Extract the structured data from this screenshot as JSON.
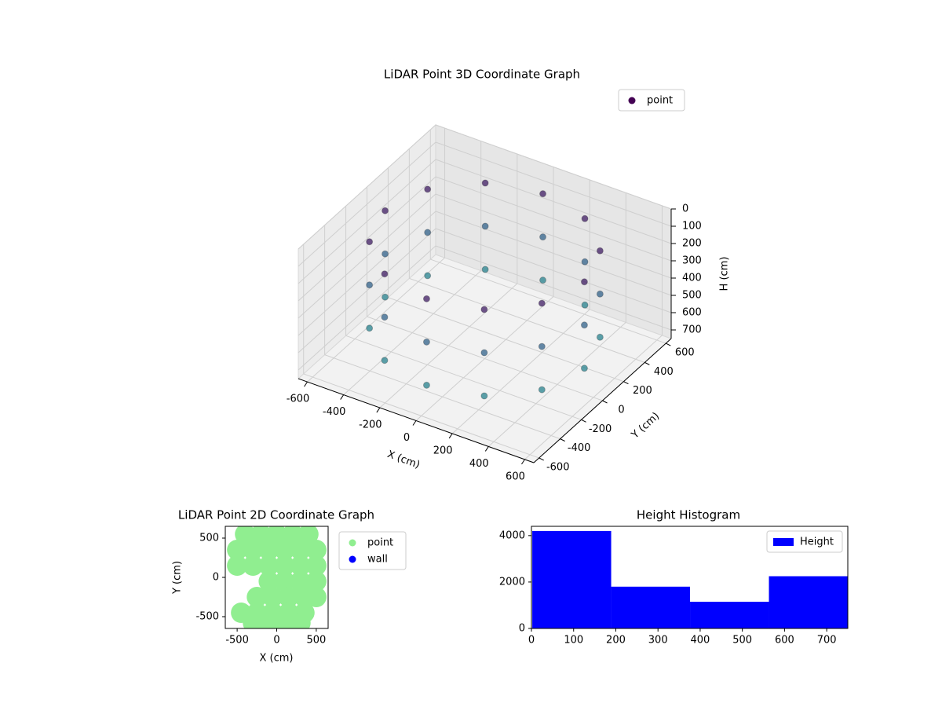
{
  "chart_data": [
    {
      "type": "scatter3d",
      "title": "LiDAR Point 3D Coordinate Graph",
      "xlabel": "X (cm)",
      "ylabel": "Y (cm)",
      "zlabel": "H (cm)",
      "xlim": [
        -650,
        650
      ],
      "ylim": [
        -650,
        650
      ],
      "zlim": [
        0,
        750
      ],
      "z_inverted": true,
      "xticks": [
        -600,
        -400,
        -200,
        0,
        200,
        400,
        600
      ],
      "yticks": [
        -600,
        -400,
        -200,
        0,
        200,
        400,
        600
      ],
      "zticks": [
        0,
        100,
        200,
        300,
        400,
        500,
        600,
        700
      ],
      "colormap": [
        "#440154",
        "#31688e",
        "#21918c"
      ],
      "legend": "upper right",
      "series": [
        {
          "name": "point",
          "color": "#440154",
          "x": [
            550,
            476,
            275,
            0,
            -275,
            -476,
            -550,
            -476,
            -275,
            0,
            275,
            476,
            550,
            476,
            275,
            0,
            -275,
            -476,
            -550,
            -476,
            -275,
            0,
            275,
            476,
            550,
            476,
            275,
            0,
            -275,
            -476,
            -550,
            -476,
            -275,
            0,
            275,
            476
          ],
          "y": [
            0,
            275,
            476,
            550,
            476,
            275,
            0,
            -275,
            -476,
            -550,
            -476,
            -275,
            0,
            275,
            476,
            550,
            476,
            275,
            0,
            -275,
            -476,
            -550,
            -476,
            -275,
            0,
            275,
            476,
            550,
            476,
            275,
            0,
            -275,
            -476,
            -550,
            -476,
            -275
          ],
          "h": [
            100,
            100,
            100,
            100,
            100,
            100,
            100,
            100,
            100,
            100,
            100,
            100,
            350,
            350,
            350,
            350,
            350,
            350,
            350,
            350,
            350,
            350,
            350,
            350,
            600,
            600,
            600,
            600,
            600,
            600,
            600,
            600,
            600,
            600,
            600,
            600
          ]
        }
      ]
    },
    {
      "type": "scatter",
      "title": "LiDAR Point 2D Coordinate Graph",
      "xlabel": "X (cm)",
      "ylabel": "Y (cm)",
      "xlim": [
        -650,
        650
      ],
      "ylim": [
        -650,
        650
      ],
      "xticks": [
        -500,
        0,
        500
      ],
      "yticks": [
        -500,
        0,
        500
      ],
      "legend": "outside upper right",
      "series": [
        {
          "name": "point",
          "color": "#90ee90",
          "x": [
            -400,
            -200,
            0,
            200,
            400,
            -500,
            -300,
            -100,
            100,
            300,
            500,
            -500,
            -300,
            -100,
            100,
            300,
            500,
            -100,
            100,
            300,
            500,
            -250,
            -50,
            150,
            350,
            500,
            -450,
            -250,
            -50,
            150,
            350,
            -300,
            -100,
            100,
            300
          ],
          "y": [
            550,
            550,
            550,
            550,
            550,
            350,
            350,
            350,
            350,
            350,
            350,
            150,
            150,
            150,
            150,
            150,
            150,
            -50,
            -50,
            -50,
            -50,
            -250,
            -250,
            -250,
            -250,
            -250,
            -450,
            -450,
            -450,
            -450,
            -450,
            -580,
            -580,
            -580,
            -580
          ]
        },
        {
          "name": "wall",
          "color": "#0000ff",
          "x": [],
          "y": []
        }
      ]
    },
    {
      "type": "histogram",
      "title": "Height Histogram",
      "xlim": [
        0,
        750
      ],
      "ylim": [
        0,
        4400
      ],
      "xticks": [
        0,
        100,
        200,
        300,
        400,
        500,
        600,
        700
      ],
      "yticks": [
        0,
        2000,
        4000
      ],
      "legend": "upper right",
      "bins": [
        2,
        189,
        376,
        563,
        750
      ],
      "series": [
        {
          "name": "Height",
          "color": "#0000ff",
          "values": [
            4200,
            1800,
            1150,
            2250
          ]
        }
      ]
    }
  ]
}
